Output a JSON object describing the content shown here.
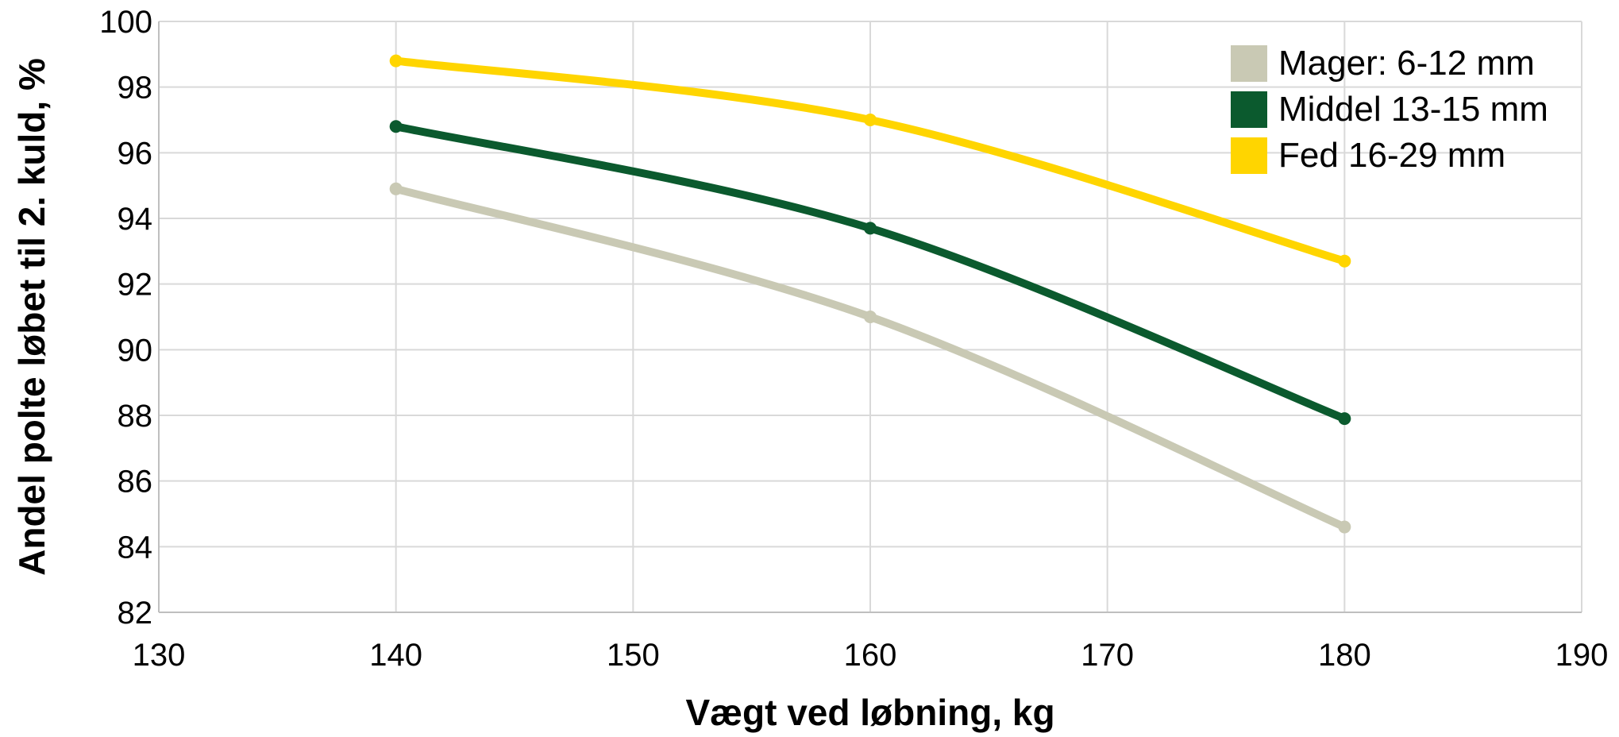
{
  "chart_data": {
    "type": "line",
    "title": "",
    "xlabel": "Vægt ved løbning, kg",
    "ylabel": "Andel polte løbet til 2. kuld, %",
    "xlim": [
      130,
      190
    ],
    "ylim": [
      82,
      100
    ],
    "x_ticks": [
      130,
      140,
      150,
      160,
      170,
      180,
      190
    ],
    "y_ticks": [
      82,
      84,
      86,
      88,
      90,
      92,
      94,
      96,
      98,
      100
    ],
    "grid": true,
    "smooth": true,
    "legend_position": "top-right",
    "series": [
      {
        "name": "Mager: 6-12 mm",
        "color": "#c9c9b4",
        "x": [
          140,
          160,
          180
        ],
        "y": [
          94.9,
          91.0,
          84.6
        ]
      },
      {
        "name": "Middel 13-15 mm",
        "color": "#0b5a2e",
        "x": [
          140,
          160,
          180
        ],
        "y": [
          96.8,
          93.7,
          87.9
        ]
      },
      {
        "name": "Fed 16-29 mm",
        "color": "#ffd500",
        "x": [
          140,
          160,
          180
        ],
        "y": [
          98.8,
          97.0,
          92.7
        ]
      }
    ]
  }
}
